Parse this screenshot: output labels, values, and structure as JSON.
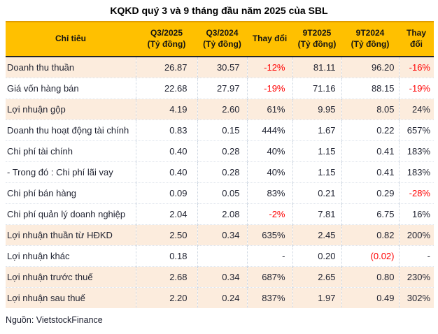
{
  "chart_data": {
    "type": "table",
    "title": "KQKD quý 3 và 9 tháng đầu năm 2025 của SBL",
    "source": "Nguồn: VietstockFinance",
    "columns": [
      {
        "label": "Chỉ tiêu",
        "sub": ""
      },
      {
        "label": "Q3/2025",
        "sub": "(Tỷ đồng)"
      },
      {
        "label": "Q3/2024",
        "sub": "(Tỷ đồng)"
      },
      {
        "label": "Thay đổi",
        "sub": ""
      },
      {
        "label": "9T2025",
        "sub": "(Tỷ đồng)"
      },
      {
        "label": "9T2024",
        "sub": "(Tỷ đồng)"
      },
      {
        "label": "Thay đổi",
        "sub": ""
      }
    ],
    "rows": [
      {
        "label": "Doanh thu thuần",
        "cells": [
          "26.87",
          "30.57",
          "-12%",
          "81.11",
          "96.20",
          "-16%"
        ],
        "neg": [
          false,
          false,
          true,
          false,
          false,
          true
        ],
        "highlight": true
      },
      {
        "label": "Giá vốn hàng bán",
        "cells": [
          "22.68",
          "27.97",
          "-19%",
          "71.16",
          "88.15",
          "-19%"
        ],
        "neg": [
          false,
          false,
          true,
          false,
          false,
          true
        ],
        "highlight": false
      },
      {
        "label": "Lợi nhuận gộp",
        "cells": [
          "4.19",
          "2.60",
          "61%",
          "9.95",
          "8.05",
          "24%"
        ],
        "neg": [
          false,
          false,
          false,
          false,
          false,
          false
        ],
        "highlight": true
      },
      {
        "label": "Doanh thu hoạt động tài chính",
        "cells": [
          "0.83",
          "0.15",
          "444%",
          "1.67",
          "0.22",
          "657%"
        ],
        "neg": [
          false,
          false,
          false,
          false,
          false,
          false
        ],
        "highlight": false
      },
      {
        "label": "Chi phí tài chính",
        "cells": [
          "0.40",
          "0.28",
          "40%",
          "1.15",
          "0.41",
          "183%"
        ],
        "neg": [
          false,
          false,
          false,
          false,
          false,
          false
        ],
        "highlight": false
      },
      {
        "label": "- Trong đó : Chi phí lãi vay",
        "cells": [
          "0.40",
          "0.28",
          "40%",
          "1.15",
          "0.41",
          "183%"
        ],
        "neg": [
          false,
          false,
          false,
          false,
          false,
          false
        ],
        "highlight": false
      },
      {
        "label": "Chi phí bán hàng",
        "cells": [
          "0.09",
          "0.05",
          "83%",
          "0.21",
          "0.29",
          "-28%"
        ],
        "neg": [
          false,
          false,
          false,
          false,
          false,
          true
        ],
        "highlight": false
      },
      {
        "label": "Chi phí quản lý doanh nghiệp",
        "cells": [
          "2.04",
          "2.08",
          "-2%",
          "7.81",
          "6.75",
          "16%"
        ],
        "neg": [
          false,
          false,
          true,
          false,
          false,
          false
        ],
        "highlight": false
      },
      {
        "label": "Lợi nhuận thuần từ HĐKD",
        "cells": [
          "2.50",
          "0.34",
          "635%",
          "2.45",
          "0.82",
          "200%"
        ],
        "neg": [
          false,
          false,
          false,
          false,
          false,
          false
        ],
        "highlight": true
      },
      {
        "label": "Lợi nhuận khác",
        "cells": [
          "0.18",
          "",
          "-",
          "0.20",
          "(0.02)",
          "-"
        ],
        "neg": [
          false,
          false,
          false,
          false,
          true,
          false
        ],
        "highlight": false
      },
      {
        "label": "Lợi nhuận trước thuế",
        "cells": [
          "2.68",
          "0.34",
          "687%",
          "2.65",
          "0.80",
          "230%"
        ],
        "neg": [
          false,
          false,
          false,
          false,
          false,
          false
        ],
        "highlight": true
      },
      {
        "label": "Lợi nhuận sau thuế",
        "cells": [
          "2.20",
          "0.24",
          "837%",
          "1.97",
          "0.49",
          "302%"
        ],
        "neg": [
          false,
          false,
          false,
          false,
          false,
          false
        ],
        "highlight": true
      }
    ],
    "colors": {
      "header_bg": "#FFC000",
      "highlight_row_bg": "#FCECDD",
      "negative_text": "#FF0000",
      "header_border_bottom": "#262626"
    }
  }
}
